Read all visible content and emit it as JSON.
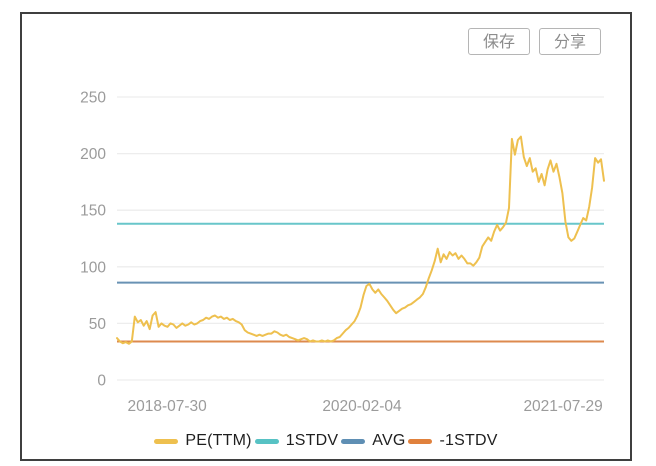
{
  "toolbar": {
    "save_label": "保存",
    "share_label": "分享"
  },
  "colors": {
    "pe_line": "#eec04f",
    "stdv1_line": "#68c6ca",
    "avg_line": "#6992b4",
    "neg_stdv_line": "#dd8a4e",
    "grid": "#ededed",
    "axis_text": "#9b9b9b",
    "legend_text": "#1f1f1f",
    "card_border": "#3f3f3f",
    "button_text": "#8c8c8c",
    "button_border": "#b5b5b5"
  },
  "chart_data": {
    "type": "line",
    "title": "",
    "xlabel": "",
    "ylabel": "",
    "ylim": [
      0,
      250
    ],
    "grid": true,
    "legend_position": "bottom",
    "y_ticks": [
      0,
      50,
      100,
      150,
      200,
      250
    ],
    "x_ticks": [
      {
        "label": "2018-07-30",
        "pos": 0.103
      },
      {
        "label": "2020-02-04",
        "pos": 0.503
      },
      {
        "label": "2021-07-29",
        "pos": 0.916
      }
    ],
    "ref_lines": [
      {
        "name": "1STDV",
        "value": 138,
        "color": "#68c6ca"
      },
      {
        "name": "AVG",
        "value": 86,
        "color": "#6992b4"
      },
      {
        "name": "-1STDV",
        "value": 34,
        "color": "#dd8a4e"
      }
    ],
    "series": [
      {
        "name": "PE(TTM)",
        "color": "#eec04f",
        "values": [
          37,
          34,
          32.5,
          33.5,
          32,
          34,
          56,
          51,
          53,
          48,
          52,
          45,
          57,
          60,
          47,
          50,
          48,
          47,
          50,
          49,
          46,
          48,
          50,
          48,
          49,
          51,
          49,
          50,
          52,
          53,
          55,
          54,
          56,
          57,
          55,
          56,
          54,
          55,
          53,
          54,
          52,
          51,
          49,
          44,
          42,
          41,
          40,
          39,
          40,
          39,
          40,
          41,
          41,
          43,
          42,
          40,
          39,
          40,
          38,
          37,
          36,
          35,
          36,
          37,
          36,
          34,
          35,
          34,
          34,
          35,
          34,
          35,
          34,
          35,
          37,
          38,
          41,
          44,
          46,
          49,
          52,
          57,
          64,
          75,
          83,
          85,
          80,
          77,
          80,
          76,
          73,
          70,
          66,
          62,
          59,
          61,
          63,
          64,
          66,
          67,
          69,
          71,
          73,
          76,
          82,
          90,
          97,
          105,
          116,
          104,
          111,
          107,
          113,
          110,
          112,
          107,
          110,
          107,
          103,
          103,
          101,
          104,
          108,
          118,
          122,
          126,
          123,
          131,
          137,
          132,
          135,
          139,
          152,
          213,
          199,
          212,
          215,
          197,
          189,
          196,
          184,
          187,
          175,
          182,
          172,
          186,
          194,
          184,
          191,
          179,
          165,
          140,
          126,
          123,
          125,
          131,
          137,
          143,
          141,
          153,
          170,
          196,
          192,
          195,
          176
        ]
      }
    ],
    "legend": [
      {
        "label": "PE(TTM)",
        "color": "#eec04f"
      },
      {
        "label": "1STDV",
        "color": "#57c2c4"
      },
      {
        "label": "AVG",
        "color": "#5f8fb4"
      },
      {
        "label": "-1STDV",
        "color": "#e0813d"
      }
    ]
  }
}
